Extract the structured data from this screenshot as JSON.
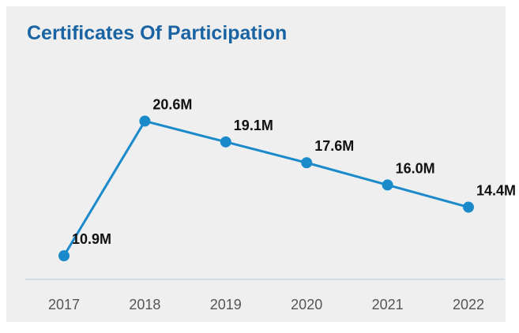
{
  "chart_data": {
    "type": "line",
    "title": "Certificates Of Participation",
    "xlabel": "",
    "ylabel": "",
    "categories": [
      "2017",
      "2018",
      "2019",
      "2020",
      "2021",
      "2022"
    ],
    "values": [
      10.9,
      20.6,
      19.1,
      17.6,
      16.0,
      14.4
    ],
    "data_labels": [
      "10.9M",
      "20.6M",
      "19.1M",
      "17.6M",
      "16.0M",
      "14.4M"
    ],
    "unit_suffix": "M",
    "grid": false,
    "legend": "none",
    "colors": {
      "line": "#1b8acb",
      "title": "#1a64a3",
      "axis": "#c9d6ea"
    }
  }
}
